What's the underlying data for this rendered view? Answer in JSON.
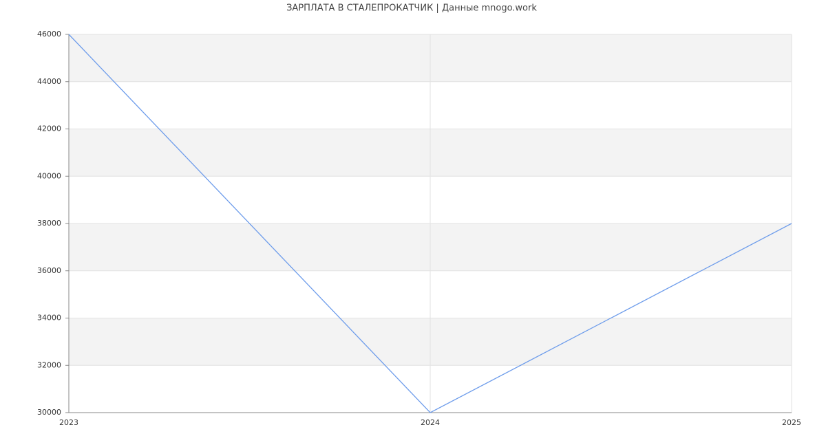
{
  "chart_data": {
    "type": "line",
    "title": "ЗАРПЛАТА В СТАЛЕПРОКАТЧИК | Данные mnogo.work",
    "x": [
      2023,
      2024,
      2025
    ],
    "values": [
      46000,
      30000,
      38000
    ],
    "color": "#6d9ceb",
    "xlim": [
      2023,
      2025
    ],
    "xticks": [
      2023,
      2024,
      2025
    ],
    "ylim": [
      30000,
      46000
    ],
    "yticks": [
      30000,
      32000,
      34000,
      36000,
      38000,
      40000,
      42000,
      44000,
      46000
    ],
    "grid": true,
    "bands": true
  }
}
